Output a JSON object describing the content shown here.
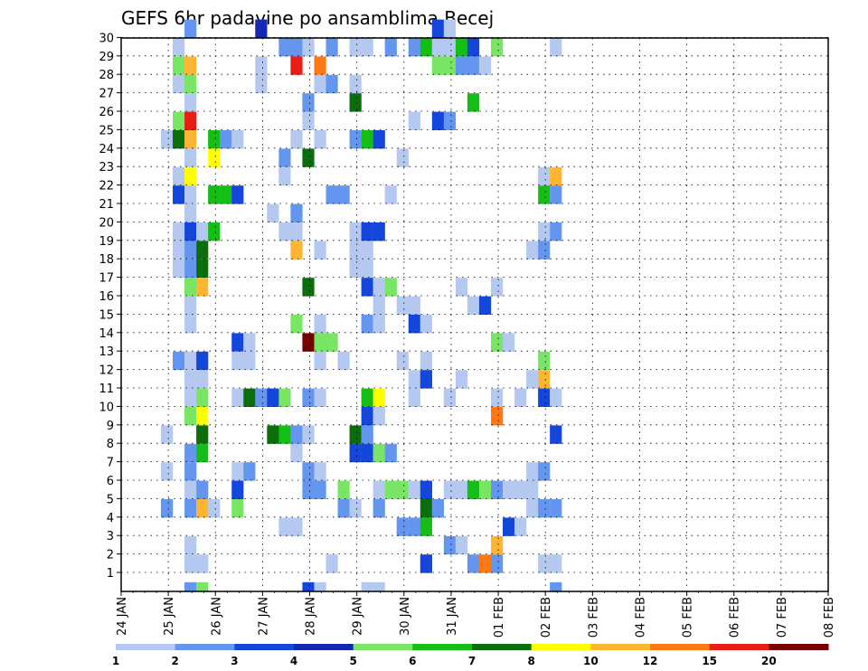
{
  "chart_data": {
    "type": "heatmap",
    "title": "GEFS 6hr padavine po ansamblima Becej",
    "xlabel": "",
    "ylabel": "",
    "y_ticks": [
      "1",
      "2",
      "3",
      "4",
      "5",
      "6",
      "7",
      "8",
      "9",
      "10",
      "11",
      "12",
      "13",
      "14",
      "15",
      "16",
      "17",
      "18",
      "19",
      "20",
      "21",
      "22",
      "23",
      "24",
      "25",
      "26",
      "27",
      "28",
      "29",
      "30"
    ],
    "x_ticks": [
      "24 JAN",
      "25 JAN",
      "26 JAN",
      "27 JAN",
      "28 JAN",
      "29 JAN",
      "30 JAN",
      "31 JAN",
      "01 FEB",
      "02 FEB",
      "03 FEB",
      "04 FEB",
      "05 FEB",
      "06 FEB",
      "07 FEB",
      "08 FEB"
    ],
    "x_unit": "6-hour step, tick every 4 steps",
    "grid": true,
    "legend": {
      "position": "bottom",
      "labels": [
        "1",
        "2",
        "3",
        "4",
        "5",
        "6",
        "7",
        "8",
        "10",
        "12",
        "15",
        "20"
      ],
      "colors": [
        "#b4c8f0",
        "#6496f0",
        "#1446dc",
        "#1428b4",
        "#78e664",
        "#14be14",
        "#0a6e0a",
        "#ffff00",
        "#ffb432",
        "#ff7814",
        "#e61e14",
        "#780000"
      ]
    },
    "cells": [
      [
        2,
        30,
        2
      ],
      [
        8,
        30,
        4
      ],
      [
        23,
        30,
        3
      ],
      [
        24,
        30,
        9
      ],
      [
        1,
        29,
        1
      ],
      [
        10,
        29,
        2
      ],
      [
        11,
        29,
        2
      ],
      [
        12,
        29,
        1
      ],
      [
        14,
        29,
        2
      ],
      [
        16,
        29,
        1
      ],
      [
        17,
        29,
        1
      ],
      [
        19,
        29,
        2
      ],
      [
        21,
        29,
        2
      ],
      [
        22,
        29,
        6
      ],
      [
        23,
        29,
        1
      ],
      [
        24,
        29,
        1
      ],
      [
        25,
        29,
        6
      ],
      [
        26,
        29,
        3
      ],
      [
        28,
        29,
        5
      ],
      [
        33,
        29,
        1
      ],
      [
        1,
        28,
        5
      ],
      [
        2,
        28,
        10
      ],
      [
        8,
        28,
        1
      ],
      [
        11,
        28,
        15
      ],
      [
        13,
        28,
        12
      ],
      [
        23,
        28,
        5
      ],
      [
        24,
        28,
        5
      ],
      [
        25,
        28,
        2
      ],
      [
        26,
        28,
        2
      ],
      [
        27,
        28,
        1
      ],
      [
        1,
        27,
        1
      ],
      [
        2,
        27,
        5
      ],
      [
        8,
        27,
        1
      ],
      [
        13,
        27,
        1
      ],
      [
        14,
        27,
        2
      ],
      [
        16,
        27,
        1
      ],
      [
        2,
        26,
        1
      ],
      [
        12,
        26,
        2
      ],
      [
        16,
        26,
        7
      ],
      [
        26,
        26,
        6
      ],
      [
        1,
        25,
        5
      ],
      [
        2,
        25,
        15
      ],
      [
        12,
        25,
        1
      ],
      [
        21,
        25,
        1
      ],
      [
        23,
        25,
        3
      ],
      [
        24,
        25,
        2
      ],
      [
        0,
        24,
        1
      ],
      [
        1,
        24,
        7
      ],
      [
        2,
        24,
        10
      ],
      [
        4,
        24,
        6
      ],
      [
        5,
        24,
        2
      ],
      [
        6,
        24,
        1
      ],
      [
        11,
        24,
        1
      ],
      [
        13,
        24,
        1
      ],
      [
        16,
        24,
        2
      ],
      [
        17,
        24,
        6
      ],
      [
        18,
        24,
        3
      ],
      [
        2,
        23,
        1
      ],
      [
        4,
        23,
        8
      ],
      [
        10,
        23,
        2
      ],
      [
        12,
        23,
        7
      ],
      [
        20,
        23,
        1
      ],
      [
        1,
        22,
        1
      ],
      [
        2,
        22,
        8
      ],
      [
        10,
        22,
        1
      ],
      [
        32,
        22,
        1
      ],
      [
        33,
        22,
        10
      ],
      [
        1,
        21,
        3
      ],
      [
        2,
        21,
        1
      ],
      [
        4,
        21,
        6
      ],
      [
        5,
        21,
        6
      ],
      [
        6,
        21,
        3
      ],
      [
        14,
        21,
        2
      ],
      [
        15,
        21,
        2
      ],
      [
        19,
        21,
        1
      ],
      [
        32,
        21,
        6
      ],
      [
        33,
        21,
        2
      ],
      [
        2,
        20,
        1
      ],
      [
        9,
        20,
        1
      ],
      [
        11,
        20,
        2
      ],
      [
        1,
        19,
        1
      ],
      [
        2,
        19,
        3
      ],
      [
        3,
        19,
        1
      ],
      [
        4,
        19,
        6
      ],
      [
        10,
        19,
        1
      ],
      [
        11,
        19,
        1
      ],
      [
        16,
        19,
        1
      ],
      [
        17,
        19,
        3
      ],
      [
        18,
        19,
        3
      ],
      [
        32,
        19,
        1
      ],
      [
        33,
        19,
        2
      ],
      [
        1,
        18,
        1
      ],
      [
        2,
        18,
        2
      ],
      [
        3,
        18,
        7
      ],
      [
        11,
        18,
        10
      ],
      [
        13,
        18,
        1
      ],
      [
        16,
        18,
        1
      ],
      [
        17,
        18,
        1
      ],
      [
        31,
        18,
        1
      ],
      [
        32,
        18,
        2
      ],
      [
        1,
        17,
        1
      ],
      [
        2,
        17,
        2
      ],
      [
        3,
        17,
        7
      ],
      [
        16,
        17,
        1
      ],
      [
        17,
        17,
        1
      ],
      [
        2,
        16,
        5
      ],
      [
        3,
        16,
        10
      ],
      [
        12,
        16,
        7
      ],
      [
        17,
        16,
        3
      ],
      [
        18,
        16,
        1
      ],
      [
        19,
        16,
        5
      ],
      [
        25,
        16,
        1
      ],
      [
        28,
        16,
        1
      ],
      [
        2,
        15,
        1
      ],
      [
        18,
        15,
        1
      ],
      [
        20,
        15,
        1
      ],
      [
        21,
        15,
        1
      ],
      [
        26,
        15,
        1
      ],
      [
        27,
        15,
        3
      ],
      [
        2,
        14,
        1
      ],
      [
        11,
        14,
        5
      ],
      [
        13,
        14,
        1
      ],
      [
        17,
        14,
        2
      ],
      [
        18,
        14,
        1
      ],
      [
        21,
        14,
        3
      ],
      [
        22,
        14,
        1
      ],
      [
        6,
        13,
        3
      ],
      [
        7,
        13,
        1
      ],
      [
        12,
        13,
        20
      ],
      [
        13,
        13,
        5
      ],
      [
        14,
        13,
        5
      ],
      [
        28,
        13,
        5
      ],
      [
        29,
        13,
        1
      ],
      [
        1,
        12,
        2
      ],
      [
        2,
        12,
        1
      ],
      [
        3,
        12,
        3
      ],
      [
        6,
        12,
        1
      ],
      [
        7,
        12,
        1
      ],
      [
        13,
        12,
        1
      ],
      [
        15,
        12,
        1
      ],
      [
        20,
        12,
        1
      ],
      [
        22,
        12,
        1
      ],
      [
        32,
        12,
        5
      ],
      [
        2,
        11,
        1
      ],
      [
        3,
        11,
        1
      ],
      [
        21,
        11,
        1
      ],
      [
        22,
        11,
        3
      ],
      [
        25,
        11,
        1
      ],
      [
        31,
        11,
        1
      ],
      [
        32,
        11,
        10
      ],
      [
        2,
        10,
        1
      ],
      [
        3,
        10,
        5
      ],
      [
        6,
        10,
        1
      ],
      [
        7,
        10,
        7
      ],
      [
        8,
        10,
        2
      ],
      [
        9,
        10,
        3
      ],
      [
        10,
        10,
        5
      ],
      [
        12,
        10,
        2
      ],
      [
        13,
        10,
        1
      ],
      [
        17,
        10,
        6
      ],
      [
        18,
        10,
        8
      ],
      [
        21,
        10,
        1
      ],
      [
        24,
        10,
        1
      ],
      [
        28,
        10,
        1
      ],
      [
        30,
        10,
        1
      ],
      [
        32,
        10,
        3
      ],
      [
        33,
        10,
        1
      ],
      [
        2,
        9,
        5
      ],
      [
        3,
        9,
        8
      ],
      [
        17,
        9,
        3
      ],
      [
        18,
        9,
        1
      ],
      [
        28,
        9,
        12
      ],
      [
        0,
        8,
        1
      ],
      [
        3,
        8,
        7
      ],
      [
        9,
        8,
        7
      ],
      [
        10,
        8,
        6
      ],
      [
        11,
        8,
        2
      ],
      [
        12,
        8,
        1
      ],
      [
        16,
        8,
        7
      ],
      [
        17,
        8,
        2
      ],
      [
        33,
        8,
        3
      ],
      [
        2,
        7,
        2
      ],
      [
        3,
        7,
        6
      ],
      [
        11,
        7,
        1
      ],
      [
        16,
        7,
        3
      ],
      [
        17,
        7,
        3
      ],
      [
        18,
        7,
        5
      ],
      [
        19,
        7,
        2
      ],
      [
        0,
        6,
        1
      ],
      [
        2,
        6,
        2
      ],
      [
        6,
        6,
        1
      ],
      [
        7,
        6,
        2
      ],
      [
        12,
        6,
        2
      ],
      [
        13,
        6,
        1
      ],
      [
        31,
        6,
        1
      ],
      [
        32,
        6,
        2
      ],
      [
        2,
        5,
        1
      ],
      [
        3,
        5,
        2
      ],
      [
        6,
        5,
        3
      ],
      [
        12,
        5,
        2
      ],
      [
        13,
        5,
        2
      ],
      [
        15,
        5,
        5
      ],
      [
        18,
        5,
        1
      ],
      [
        19,
        5,
        5
      ],
      [
        20,
        5,
        5
      ],
      [
        21,
        5,
        1
      ],
      [
        22,
        5,
        3
      ],
      [
        24,
        5,
        1
      ],
      [
        25,
        5,
        1
      ],
      [
        26,
        5,
        6
      ],
      [
        27,
        5,
        5
      ],
      [
        28,
        5,
        2
      ],
      [
        29,
        5,
        1
      ],
      [
        30,
        5,
        1
      ],
      [
        31,
        5,
        1
      ],
      [
        0,
        4,
        2
      ],
      [
        2,
        4,
        2
      ],
      [
        3,
        4,
        10
      ],
      [
        4,
        4,
        1
      ],
      [
        6,
        4,
        5
      ],
      [
        15,
        4,
        2
      ],
      [
        16,
        4,
        1
      ],
      [
        18,
        4,
        2
      ],
      [
        22,
        4,
        7
      ],
      [
        23,
        4,
        2
      ],
      [
        31,
        4,
        1
      ],
      [
        32,
        4,
        2
      ],
      [
        33,
        4,
        2
      ],
      [
        10,
        3,
        1
      ],
      [
        11,
        3,
        1
      ],
      [
        20,
        3,
        2
      ],
      [
        21,
        3,
        2
      ],
      [
        22,
        3,
        6
      ],
      [
        29,
        3,
        3
      ],
      [
        30,
        3,
        1
      ],
      [
        2,
        2,
        1
      ],
      [
        24,
        2,
        2
      ],
      [
        25,
        2,
        1
      ],
      [
        28,
        2,
        10
      ],
      [
        2,
        1,
        1
      ],
      [
        3,
        1,
        1
      ],
      [
        14,
        1,
        1
      ],
      [
        22,
        1,
        3
      ],
      [
        26,
        1,
        2
      ],
      [
        27,
        1,
        12
      ],
      [
        28,
        1,
        2
      ],
      [
        32,
        1,
        1
      ],
      [
        33,
        1,
        1
      ],
      [
        2,
        0,
        2
      ],
      [
        3,
        0,
        5
      ],
      [
        12,
        0,
        3
      ],
      [
        13,
        0,
        1
      ],
      [
        17,
        0,
        1
      ],
      [
        18,
        0,
        1
      ],
      [
        33,
        0,
        2
      ]
    ]
  }
}
